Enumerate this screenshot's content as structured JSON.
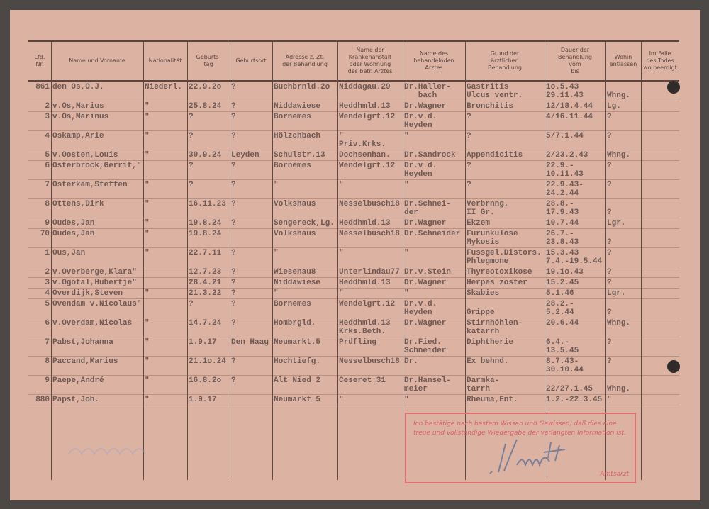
{
  "columns": [
    "Lfd.\nNr.",
    "Name und Vorname",
    "Nationalität",
    "Geburts-\ntag",
    "Geburtsort",
    "Adresse z. Zt.\nder Behandlung",
    "Name der\nKrankenanstalt\noder Wohnung\ndes betr. Arztes",
    "Name des\nbehandelnden\nArztes",
    "Grund der\närztlichen\nBehandlung",
    "Dauer der\nBehandlung\nvom\nbis",
    "Wohin\nentlassen",
    "Im Falle\ndes Todes\nwo beerdigt"
  ],
  "rows": [
    {
      "nr": "861",
      "name": "den Os,O.J.",
      "nat": "Niederl.",
      "birth": "22.9.2o",
      "place": "?",
      "addr": "Buchbrnld.2o",
      "hosp": "Niddagau.29",
      "doc": "Dr.Haller-\n   bach",
      "reason": "Gastritis\nUlcus ventr.",
      "dur": "1o.5.43\n29.11.43",
      "out": "\nWhng."
    },
    {
      "nr": "2",
      "name": "v.Os,Marius",
      "nat": "\"",
      "birth": "25.8.24",
      "place": "?",
      "addr": "Niddawiese",
      "hosp": "Heddhmld.13",
      "doc": "Dr.Wagner",
      "reason": "Bronchitis",
      "dur": "12/18.4.44",
      "out": "Lg."
    },
    {
      "nr": "3",
      "name": "v.Os,Marinus",
      "nat": "\"",
      "birth": "?",
      "place": "?",
      "addr": "Bornemes",
      "hosp": "Wendelgrt.12",
      "doc": "Dr.v.d.\nHeyden",
      "reason": "?",
      "dur": "4/16.11.44",
      "out": "?"
    },
    {
      "nr": "4",
      "name": "Oskamp,Arie",
      "nat": "\"",
      "birth": "?",
      "place": "?",
      "addr": "Hölzchbach",
      "hosp": "\"\nPriv.Krks.",
      "doc": "\"",
      "reason": "?",
      "dur": "5/7.1.44",
      "out": "?"
    },
    {
      "nr": "5",
      "name": "v.Oosten,Louis",
      "nat": "\"",
      "birth": "30.9.24",
      "place": "Leyden",
      "addr": "Schulstr.13",
      "hosp": "Dochsenhan.",
      "doc": "Dr.Sandrock",
      "reason": "Appendicitis",
      "dur": "2/23.2.43",
      "out": "Whng."
    },
    {
      "nr": "6",
      "name": "Osterbrock,Gerrit,\"",
      "nat": "",
      "birth": "?",
      "place": "?",
      "addr": "Bornemes",
      "hosp": "Wendelgrt.12",
      "doc": "Dr.v.d.\nHeyden",
      "reason": "?",
      "dur": "22.9.-\n10.11.43",
      "out": "?"
    },
    {
      "nr": "7",
      "name": "Osterkam,Steffen",
      "nat": "\"",
      "birth": "?",
      "place": "?",
      "addr": "\"",
      "hosp": "\"",
      "doc": "\"",
      "reason": "?",
      "dur": "22.9.43-\n24.2.44",
      "out": "?"
    },
    {
      "nr": "8",
      "name": "Ottens,Dirk",
      "nat": "\"",
      "birth": "16.11.23",
      "place": "?",
      "addr": "Volkshaus",
      "hosp": "Nesselbusch18",
      "doc": "Dr.Schnei-\nder",
      "reason": "Verbrnng.\nII Gr.",
      "dur": "28.8.-\n17.9.43",
      "out": "\n?"
    },
    {
      "nr": "9",
      "name": "Oudes,Jan",
      "nat": "\"",
      "birth": "19.8.24",
      "place": "?",
      "addr": "Sengereck,Lg.",
      "hosp": "Heddhmld.13",
      "doc": "Dr.Wagner",
      "reason": "Ekzem",
      "dur": "10.7.44",
      "out": "Lgr."
    },
    {
      "nr": "70",
      "name": "Oudes,Jan",
      "nat": "\"",
      "birth": "19.8.24",
      "place": "",
      "addr": "Volkshaus",
      "hosp": "Nesselbusch18",
      "doc": "Dr.Schneider",
      "reason": "Furunkulose\nMykosis",
      "dur": "26.7.-\n23.8.43",
      "out": "\n?"
    },
    {
      "nr": "1",
      "name": "Ous,Jan",
      "nat": "\"",
      "birth": "22.7.11",
      "place": "?",
      "addr": "\"",
      "hosp": "\"",
      "doc": "\"",
      "reason": "Fussgel.Distors.\nPhlegmone",
      "dur": "15.3.43\n7.4.-19.5.44",
      "out": "?"
    },
    {
      "nr": "2",
      "name": "v.Overberge,Klara\"",
      "nat": "",
      "birth": "12.7.23",
      "place": "?",
      "addr": "Wiesenau8",
      "hosp": "Unterlindau77",
      "doc": "Dr.v.Stein",
      "reason": "Thyreotoxikose",
      "dur": "19.1o.43",
      "out": "?"
    },
    {
      "nr": "3",
      "name": "v.Ogotal,Hubertje\"",
      "nat": "",
      "birth": "28.4.21",
      "place": "?",
      "addr": "Niddawiese",
      "hosp": "Heddhmld.13",
      "doc": "Dr.Wagner",
      "reason": "Herpes zoster",
      "dur": "15.2.45",
      "out": "?"
    },
    {
      "nr": "4",
      "name": "Overdijk,Steven",
      "nat": "\"",
      "birth": "21.3.22",
      "place": "?",
      "addr": "\"",
      "hosp": "\"",
      "doc": "\"",
      "reason": "Skabies",
      "dur": "5.1.46",
      "out": "Lgr."
    },
    {
      "nr": "5",
      "name": "Ovendam v.Nicolaus\"",
      "nat": "",
      "birth": "?",
      "place": "?",
      "addr": "Bornemes",
      "hosp": "Wendelgrt.12",
      "doc": "Dr.v.d.\nHeyden",
      "reason": "\nGrippe",
      "dur": "28.2.-\n5.2.44",
      "out": "\n?"
    },
    {
      "nr": "6",
      "name": "v.Overdam,Nicolas",
      "nat": "\"",
      "birth": "14.7.24",
      "place": "?",
      "addr": "Hombrgld.",
      "hosp": "Heddhmld.13\nKrks.Beth.",
      "doc": "Dr.Wagner",
      "reason": "Stirnhöhlen-\nkatarrh",
      "dur": "20.6.44",
      "out": "Whng."
    },
    {
      "nr": "7",
      "name": "Pabst,Johanna",
      "nat": "\"",
      "birth": "1.9.17",
      "place": "Den Haag",
      "addr": "Neumarkt.5",
      "hosp": "Prüfling",
      "doc": "Dr.Fied.\nSchneider",
      "reason": "Diphtherie",
      "dur": "6.4.-\n13.5.45",
      "out": "?"
    },
    {
      "nr": "8",
      "name": "Paccand,Marius",
      "nat": "\"",
      "birth": "21.1o.24",
      "place": "?",
      "addr": "Hochtiefg.",
      "hosp": "Nesselbusch18",
      "doc": "Dr.",
      "reason": "Ex behnd.",
      "dur": "8.7.43-\n30.10.44",
      "out": "?"
    },
    {
      "nr": "9",
      "name": "Paepe,André",
      "nat": "\"",
      "birth": "16.8.2o",
      "place": "?",
      "addr": "Alt Nied 2",
      "hosp": "Ceseret.31",
      "doc": "Dr.Hansel-\nmeier",
      "reason": "Darmka-\ntarrh",
      "dur": "\n22/27.1.45",
      "out": "\nWhng."
    },
    {
      "nr": "880",
      "name": "Papst,Joh.",
      "nat": "\"",
      "birth": "1.9.17",
      "place": "",
      "addr": "Neumarkt 5",
      "hosp": "\"",
      "doc": "\"",
      "reason": "Rheuma,Ent.",
      "dur": "1.2.-22.3.45",
      "out": "\""
    }
  ],
  "stamp": {
    "text": "Ich bestätige nach bestem Wissen und Gewissen, daß dies eine treue und vollständige Wiedergabe der verlangten Information ist.",
    "signer": "Amtsarzt",
    "color": "#d9606a"
  },
  "paper_color": "#dcb2a3"
}
